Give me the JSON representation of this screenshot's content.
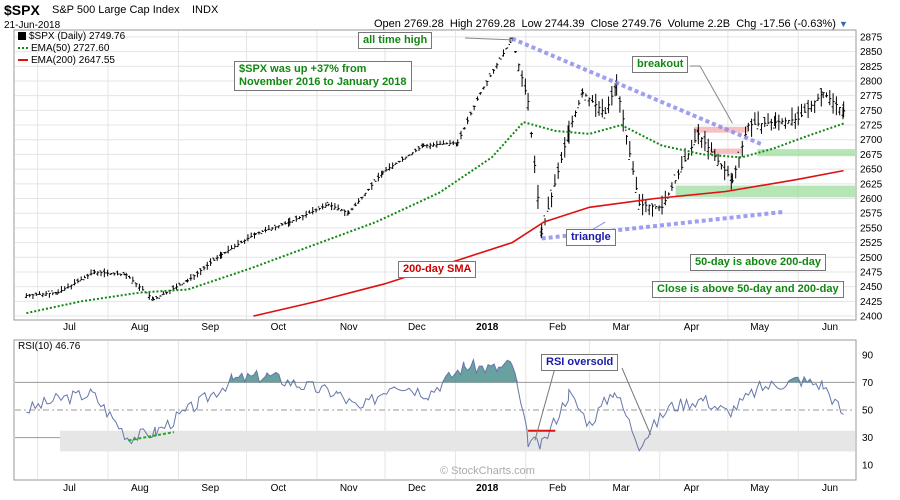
{
  "header": {
    "symbol": "$SPX",
    "description": "S&P 500 Large Cap Index",
    "exchange": "INDX",
    "date": "21-Jun-2018",
    "open_label": "Open",
    "open": "2769.28",
    "high_label": "High",
    "high": "2769.28",
    "low_label": "Low",
    "low": "2744.39",
    "close_label": "Close",
    "close": "2749.76",
    "volume_label": "Volume",
    "volume": "2.2B",
    "chg_label": "Chg",
    "chg": "-17.56 (-0.63%)",
    "chg_icon": "down-triangle-icon"
  },
  "legend": {
    "price": "$SPX (Daily) 2749.76",
    "ema50": "EMA(50) 2727.60",
    "ema200": "EMA(200) 2647.55"
  },
  "annotations": {
    "all_time_high": "all time high",
    "up37_line1": "$SPX was up +37% from",
    "up37_line2": "November 2016 to January 2018",
    "breakout": "breakout",
    "triangle": "triangle",
    "sma200": "200-day SMA",
    "above200": "50-day is above 200-day",
    "close_above": "Close is above 50-day and 200-day",
    "rsi_oversold": "RSI oversold"
  },
  "rsi": {
    "label": "RSI(10) 46.76"
  },
  "watermark": "© StockCharts.com",
  "colors": {
    "price": "#000000",
    "ema50": "#118811",
    "ema200": "#dd1111",
    "rsi": "#6677aa",
    "rsi_fill": "#4f8f8f",
    "triangle": "#8888ee",
    "zone_green": "#9ddc9d",
    "zone_red": "#f4a6a6"
  },
  "chart_data": [
    {
      "type": "line",
      "name": "price",
      "title": "$SPX (Daily) 2749.76",
      "x_ticks": [
        "Jul",
        "Aug",
        "Sep",
        "Oct",
        "Nov",
        "Dec",
        "2018",
        "Feb",
        "Mar",
        "Apr",
        "May",
        "Jun"
      ],
      "y_ticks": [
        2400,
        2425,
        2450,
        2475,
        2500,
        2525,
        2550,
        2575,
        2600,
        2625,
        2650,
        2675,
        2700,
        2725,
        2750,
        2775,
        2800,
        2825,
        2850,
        2875
      ],
      "ylim": [
        2395,
        2885
      ],
      "x_dates": [
        "2017-06-26",
        "2017-07-10",
        "2017-07-26",
        "2017-08-09",
        "2017-08-21",
        "2017-09-05",
        "2017-09-20",
        "2017-10-05",
        "2017-10-20",
        "2017-11-06",
        "2017-11-15",
        "2017-11-30",
        "2017-12-18",
        "2018-01-02",
        "2018-01-12",
        "2018-01-26",
        "2018-02-02",
        "2018-02-08",
        "2018-02-20",
        "2018-02-26",
        "2018-03-08",
        "2018-03-13",
        "2018-03-23",
        "2018-04-02",
        "2018-04-18",
        "2018-05-03",
        "2018-05-10",
        "2018-05-22",
        "2018-06-01",
        "2018-06-12",
        "2018-06-21"
      ],
      "close": [
        2435,
        2440,
        2475,
        2470,
        2428,
        2460,
        2505,
        2540,
        2560,
        2590,
        2575,
        2645,
        2690,
        2695,
        2780,
        2872,
        2765,
        2540,
        2715,
        2780,
        2745,
        2795,
        2590,
        2585,
        2710,
        2630,
        2725,
        2730,
        2735,
        2780,
        2749
      ],
      "ema50_x": [
        "2017-06-26",
        "2017-07-20",
        "2017-08-15",
        "2017-09-05",
        "2017-10-02",
        "2017-10-30",
        "2017-11-27",
        "2017-12-25",
        "2018-01-17",
        "2018-01-31",
        "2018-02-14",
        "2018-03-01",
        "2018-03-15",
        "2018-04-02",
        "2018-04-20",
        "2018-05-07",
        "2018-05-21",
        "2018-06-04",
        "2018-06-21"
      ],
      "ema50": [
        2405,
        2425,
        2440,
        2445,
        2480,
        2520,
        2560,
        2610,
        2670,
        2730,
        2715,
        2710,
        2725,
        2690,
        2675,
        2670,
        2685,
        2705,
        2727.6
      ],
      "ema200_x": [
        "2017-10-04",
        "2017-11-01",
        "2017-12-01",
        "2018-01-02",
        "2018-01-26",
        "2018-02-09",
        "2018-03-01",
        "2018-03-30",
        "2018-04-30",
        "2018-05-31",
        "2018-06-21"
      ],
      "ema200": [
        2400,
        2425,
        2455,
        2495,
        2525,
        2560,
        2585,
        2600,
        2612,
        2632,
        2647.55
      ]
    },
    {
      "type": "line",
      "name": "rsi",
      "title": "RSI(10) 46.76",
      "x_ticks": [
        "Jul",
        "Aug",
        "Sep",
        "Oct",
        "Nov",
        "Dec",
        "2018",
        "Feb",
        "Mar",
        "Apr",
        "May",
        "Jun"
      ],
      "y_ticks": [
        10,
        30,
        50,
        70,
        90
      ],
      "ylim": [
        0,
        100
      ],
      "reference_lines": [
        30,
        50,
        70
      ],
      "x_dates": [
        "2017-06-26",
        "2017-07-10",
        "2017-07-25",
        "2017-08-10",
        "2017-08-22",
        "2017-09-10",
        "2017-09-25",
        "2017-10-10",
        "2017-10-25",
        "2017-11-10",
        "2017-11-20",
        "2017-12-05",
        "2017-12-20",
        "2018-01-05",
        "2018-01-20",
        "2018-01-26",
        "2018-02-02",
        "2018-02-08",
        "2018-02-20",
        "2018-03-01",
        "2018-03-12",
        "2018-03-23",
        "2018-04-05",
        "2018-04-20",
        "2018-05-01",
        "2018-05-15",
        "2018-06-01",
        "2018-06-12",
        "2018-06-21"
      ],
      "values": [
        50,
        58,
        62,
        30,
        34,
        55,
        72,
        75,
        68,
        62,
        50,
        70,
        62,
        82,
        80,
        84,
        28,
        24,
        62,
        40,
        65,
        25,
        52,
        58,
        48,
        66,
        72,
        68,
        46.76
      ]
    }
  ]
}
